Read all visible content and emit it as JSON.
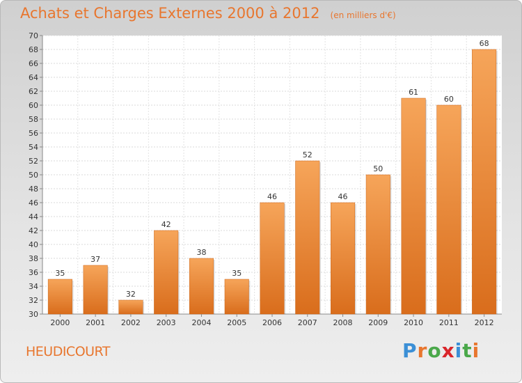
{
  "header": {
    "title": "Achats et Charges Externes 2000 à 2012",
    "unit": "(en milliers d'€)"
  },
  "footer": {
    "place": "HEUDICOURT",
    "logo_text": "Proxiti",
    "logo_colors": [
      "#3b8fd6",
      "#e8762e",
      "#4aa84a",
      "#d9262b",
      "#3b8fd6",
      "#4aa84a",
      "#e8762e"
    ]
  },
  "colors": {
    "bar_top": "#f6a55a",
    "bar_bottom": "#d96d1c",
    "accent": "#e8762e"
  },
  "chart_data": {
    "type": "bar",
    "title": "Achats et Charges Externes 2000 à 2012",
    "xlabel": "",
    "ylabel": "",
    "categories": [
      "2000",
      "2001",
      "2002",
      "2003",
      "2004",
      "2005",
      "2006",
      "2007",
      "2008",
      "2009",
      "2010",
      "2011",
      "2012"
    ],
    "values": [
      35,
      37,
      32,
      42,
      38,
      35,
      46,
      52,
      46,
      50,
      61,
      60,
      68
    ],
    "ylim": [
      30,
      70
    ],
    "ytick_step": 2,
    "grid": true,
    "legend": "none"
  }
}
